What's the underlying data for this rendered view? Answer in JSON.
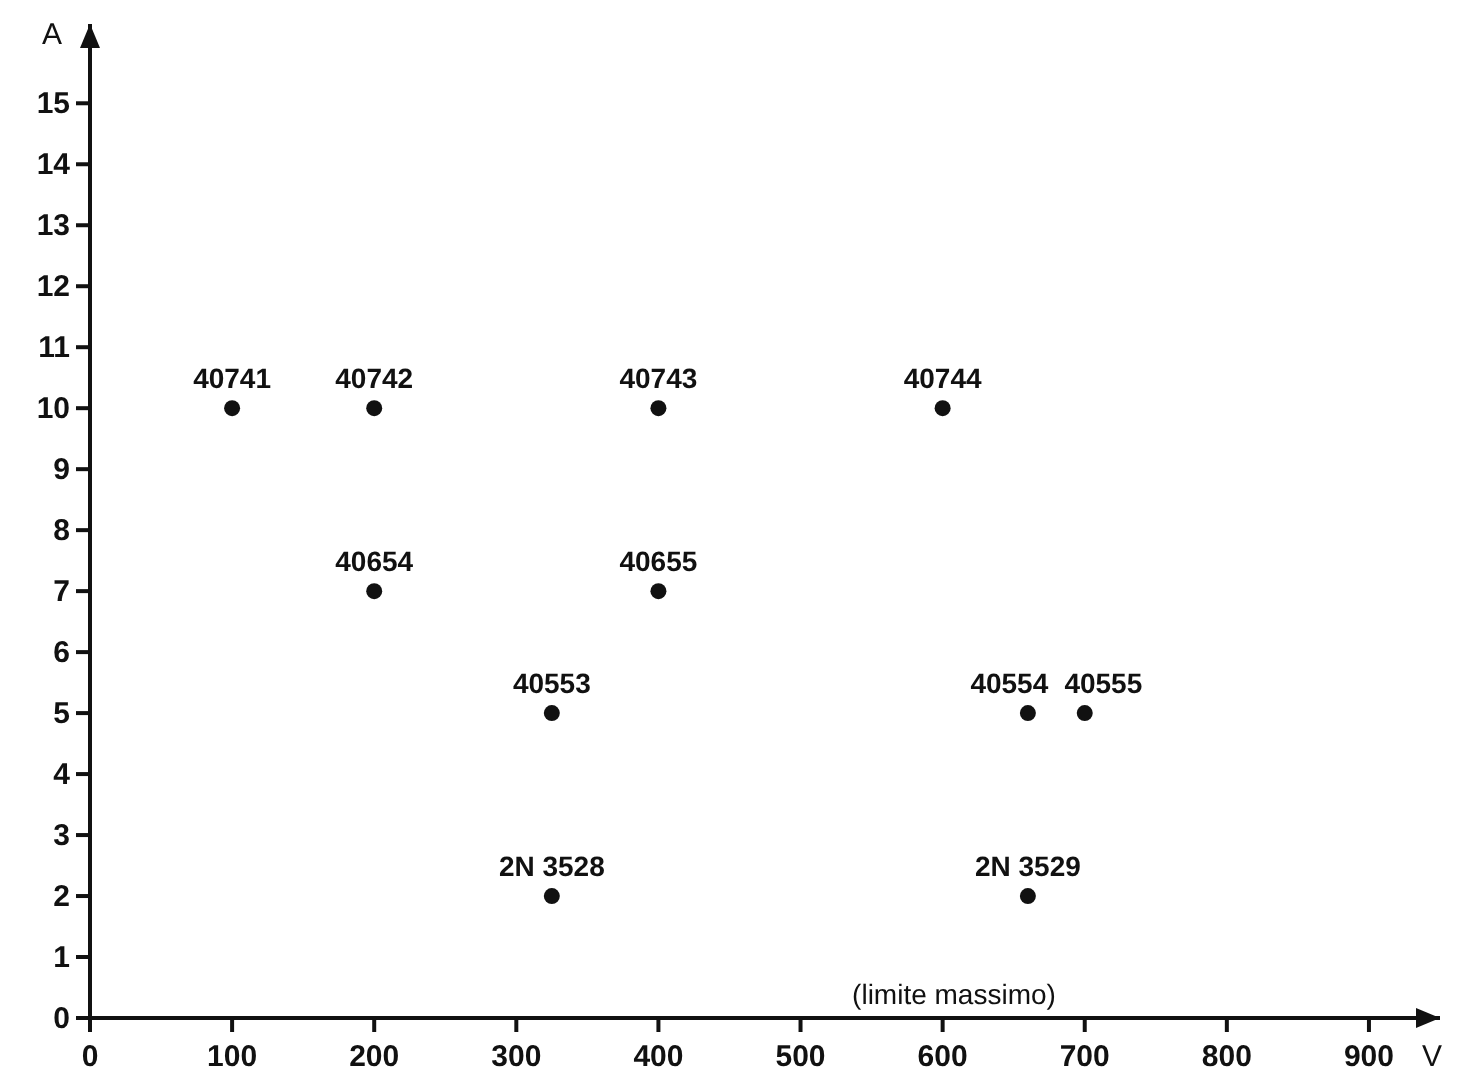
{
  "chart_data": {
    "type": "scatter",
    "xlabel": "V",
    "ylabel": "A",
    "marker": "circle",
    "xlim": [
      0,
      950
    ],
    "ylim": [
      0,
      16.3
    ],
    "xticks": [
      0,
      100,
      200,
      300,
      400,
      500,
      600,
      700,
      800,
      900
    ],
    "yticks": [
      0,
      1,
      2,
      3,
      4,
      5,
      6,
      7,
      8,
      9,
      10,
      11,
      12,
      13,
      14,
      15
    ],
    "series": [
      {
        "color": "#111111",
        "x": [
          100,
          200,
          400,
          600,
          200,
          400,
          325,
          660,
          700,
          325,
          660
        ],
        "values": [
          10,
          10,
          10,
          10,
          7,
          7,
          5,
          5,
          5,
          2,
          2
        ]
      }
    ],
    "annotations": [
      {
        "text": "40741",
        "x": 100,
        "y": 10
      },
      {
        "text": "40742",
        "x": 200,
        "y": 10
      },
      {
        "text": "40743",
        "x": 400,
        "y": 10
      },
      {
        "text": "40744",
        "x": 600,
        "y": 10
      },
      {
        "text": "40654",
        "x": 200,
        "y": 7
      },
      {
        "text": "40655",
        "x": 400,
        "y": 7
      },
      {
        "text": "40553",
        "x": 325,
        "y": 5
      },
      {
        "text": "40554",
        "x": 660,
        "y": 5
      },
      {
        "text": "40555",
        "x": 700,
        "y": 5
      },
      {
        "text": "2N 3528",
        "x": 325,
        "y": 2
      },
      {
        "text": "2N 3529",
        "x": 660,
        "y": 2
      },
      "(limite massimo)"
    ]
  }
}
